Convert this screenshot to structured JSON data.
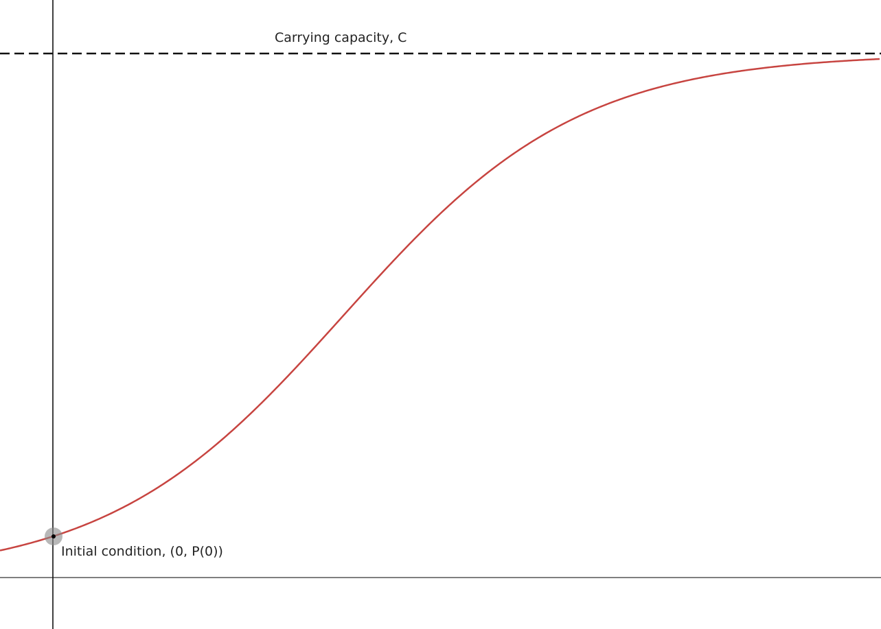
{
  "annotations": {
    "carrying_capacity": "Carrying capacity, C",
    "initial_condition": "Initial condition, (0, P(0))"
  }
}
